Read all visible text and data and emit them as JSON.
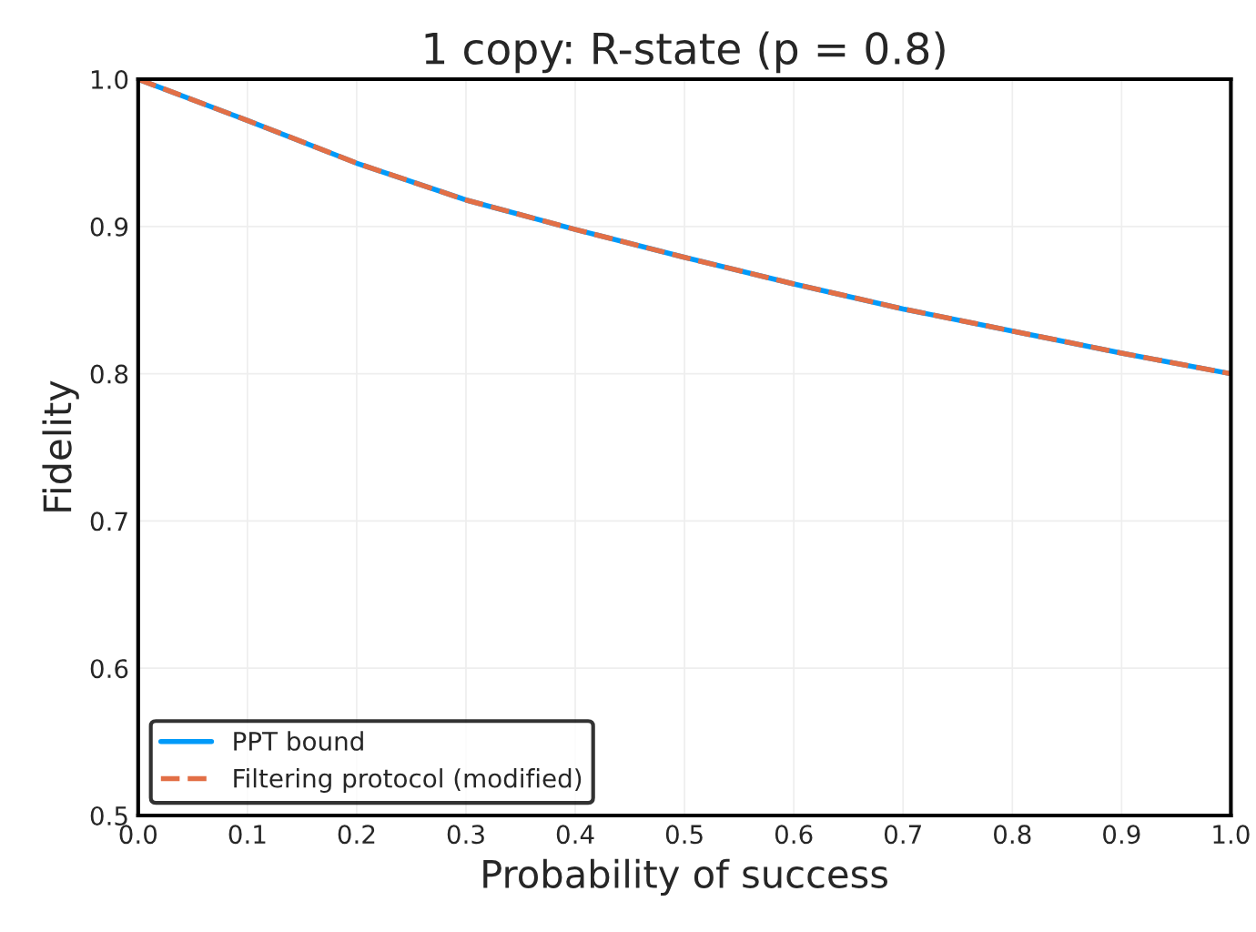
{
  "chart_data": {
    "type": "line",
    "title": "1 copy: R-state (p = 0.8)",
    "xlabel": "Probability of success",
    "ylabel": "Fidelity",
    "x": [
      0,
      0.1,
      0.2,
      0.3,
      0.4,
      0.5,
      0.6,
      0.7,
      0.8,
      0.9,
      1.0
    ],
    "series": [
      {
        "name": "PPT bound",
        "color": "#009af9",
        "line_style": "solid",
        "values": [
          1.0,
          0.972,
          0.943,
          0.918,
          0.898,
          0.879,
          0.861,
          0.844,
          0.829,
          0.814,
          0.8
        ]
      },
      {
        "name": "Filtering protocol (modified)",
        "color": "#e26f46",
        "line_style": "dashed",
        "values": [
          1.0,
          0.972,
          0.943,
          0.918,
          0.898,
          0.879,
          0.861,
          0.844,
          0.829,
          0.814,
          0.8
        ]
      }
    ],
    "xlim": [
      0,
      1.0
    ],
    "ylim": [
      0.5,
      1.0
    ],
    "xticks": [
      {
        "value": 0,
        "label": "0.0"
      },
      0.1,
      0.2,
      0.3,
      0.4,
      0.5,
      0.6,
      0.7,
      0.8,
      0.9,
      {
        "value": 1,
        "label": "1.0"
      }
    ],
    "yticks": [
      0.5,
      0.6,
      0.7,
      0.8,
      0.9,
      {
        "value": 1,
        "label": "1.0"
      }
    ],
    "grid": true,
    "legend": "bottom left"
  }
}
